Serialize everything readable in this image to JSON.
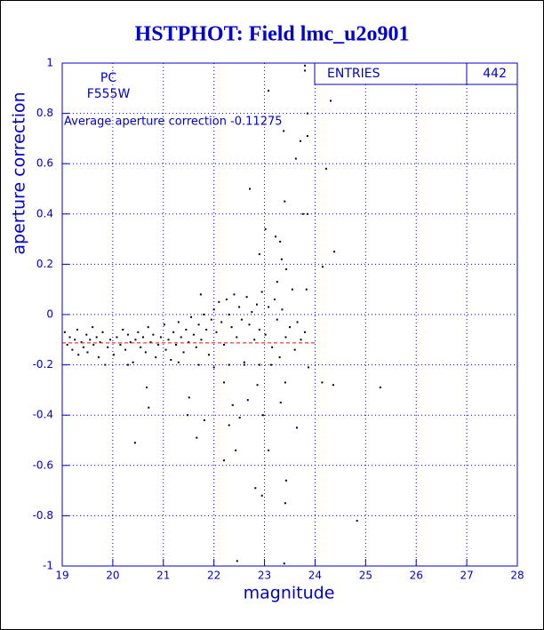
{
  "chart_data": {
    "type": "scatter",
    "title": "HSTPHOT: Field lmc_u2o901",
    "x_label": "magnitude",
    "y_label": "aperture correction",
    "text_lines": [
      "PC",
      "F555W"
    ],
    "annotation": "Average aperture correction -0.11275",
    "average": -0.11275,
    "average_color": "#ff0000",
    "stats": {
      "label": "ENTRIES",
      "value": 442
    },
    "color": "#000000",
    "grid": true,
    "xlim": [
      19,
      28
    ],
    "xticks": [
      19,
      20,
      21,
      22,
      23,
      24,
      25,
      26,
      27,
      28
    ],
    "ylim": [
      -1,
      1
    ],
    "yticks": [
      -1,
      -0.8,
      -0.6,
      -0.4,
      -0.2,
      0,
      0.2,
      0.4,
      0.6,
      0.8,
      1
    ],
    "x": [
      23.8,
      23.8,
      24.31,
      23.08,
      23.85,
      23.71,
      23.85,
      23.38,
      23.62,
      24.22,
      22.71,
      23.85,
      23.4,
      23.76,
      23.22,
      24.38,
      23.02,
      23.31,
      22.9,
      23.34,
      24.15,
      23.43,
      23.83,
      21.74,
      23.25,
      24.36,
      24.14,
      25.29,
      24.83,
      20.44,
      20.67,
      20.71,
      21.48,
      21.66,
      21.51,
      22.2,
      22.43,
      21.81,
      22.82,
      23.41,
      23.43,
      22.95,
      22.46,
      23.39,
      23.08,
      23.32,
      22.67,
      22.86,
      23.41,
      23.64,
      23.87,
      23.13,
      22.3,
      22.51,
      22.97,
      22.37,
      22.2,
      19.05,
      19.1,
      19.15,
      19.2,
      19.25,
      19.3,
      19.32,
      19.38,
      19.42,
      19.48,
      19.5,
      19.55,
      19.6,
      19.62,
      19.68,
      19.72,
      19.75,
      19.8,
      19.85,
      19.9,
      19.95,
      20.02,
      20.08,
      20.15,
      20.2,
      20.25,
      20.3,
      20.35,
      20.4,
      20.45,
      20.5,
      20.55,
      20.6,
      20.65,
      20.7,
      20.75,
      20.8,
      20.85,
      20.9,
      20.95,
      21.02,
      21.05,
      21.1,
      21.15,
      21.2,
      21.25,
      21.3,
      21.35,
      21.4,
      21.45,
      21.5,
      21.55,
      21.6,
      21.65,
      21.7,
      21.75,
      21.8,
      21.85,
      21.9,
      21.95,
      22.0,
      22.05,
      22.1,
      22.15,
      22.2,
      22.25,
      22.3,
      22.35,
      22.4,
      22.45,
      22.5,
      22.55,
      22.6,
      22.65,
      22.7,
      22.75,
      22.8,
      22.85,
      22.9,
      22.95,
      23.02,
      23.08,
      23.15,
      23.2,
      23.25,
      23.3,
      23.35,
      23.42,
      23.5,
      23.55,
      23.6,
      23.65,
      23.72,
      23.8,
      20.3,
      21.3,
      21.7,
      22.0,
      22.3,
      22.6,
      22.9
    ],
    "values": [
      0.99,
      0.97,
      0.85,
      0.89,
      0.8,
      0.69,
      0.71,
      0.73,
      0.62,
      0.58,
      0.5,
      0.4,
      0.45,
      0.4,
      0.31,
      0.25,
      0.34,
      0.29,
      0.24,
      0.22,
      0.19,
      0.18,
      0.1,
      0.08,
      0.13,
      -0.28,
      -0.27,
      -0.29,
      -0.82,
      -0.51,
      -0.29,
      -0.37,
      -0.4,
      -0.49,
      -0.33,
      -0.58,
      -0.54,
      -0.42,
      -0.69,
      -0.75,
      -0.66,
      -0.72,
      -0.98,
      -0.99,
      -0.54,
      -0.35,
      -0.34,
      -0.28,
      -0.27,
      -0.45,
      -0.21,
      -0.2,
      -0.44,
      -0.41,
      -0.4,
      -0.36,
      -0.27,
      -0.07,
      -0.12,
      -0.09,
      -0.14,
      -0.1,
      -0.06,
      -0.16,
      -0.11,
      -0.13,
      -0.08,
      -0.15,
      -0.1,
      -0.05,
      -0.12,
      -0.09,
      -0.17,
      -0.11,
      -0.07,
      -0.2,
      -0.13,
      -0.1,
      -0.16,
      -0.09,
      -0.12,
      -0.06,
      -0.14,
      -0.08,
      -0.11,
      -0.19,
      -0.1,
      -0.07,
      -0.13,
      -0.09,
      -0.15,
      -0.05,
      -0.11,
      -0.08,
      -0.17,
      -0.12,
      -0.09,
      -0.04,
      -0.14,
      -0.1,
      -0.18,
      -0.07,
      -0.12,
      -0.03,
      -0.09,
      -0.15,
      -0.06,
      -0.11,
      -0.01,
      -0.08,
      -0.13,
      -0.04,
      -0.1,
      0.0,
      -0.06,
      -0.16,
      -0.02,
      0.02,
      -0.07,
      0.05,
      -0.03,
      -0.12,
      0.06,
      0.0,
      -0.05,
      0.08,
      -0.09,
      0.03,
      -0.02,
      -0.2,
      0.07,
      -0.04,
      0.01,
      -0.1,
      0.04,
      -0.06,
      0.09,
      -0.08,
      0.03,
      -0.13,
      0.06,
      -0.02,
      -0.17,
      0.02,
      -0.09,
      -0.05,
      0.1,
      -0.14,
      -0.03,
      -0.1,
      -0.07,
      -0.2,
      -0.19,
      -0.2,
      -0.21,
      -0.2,
      -0.19,
      -0.2
    ]
  }
}
